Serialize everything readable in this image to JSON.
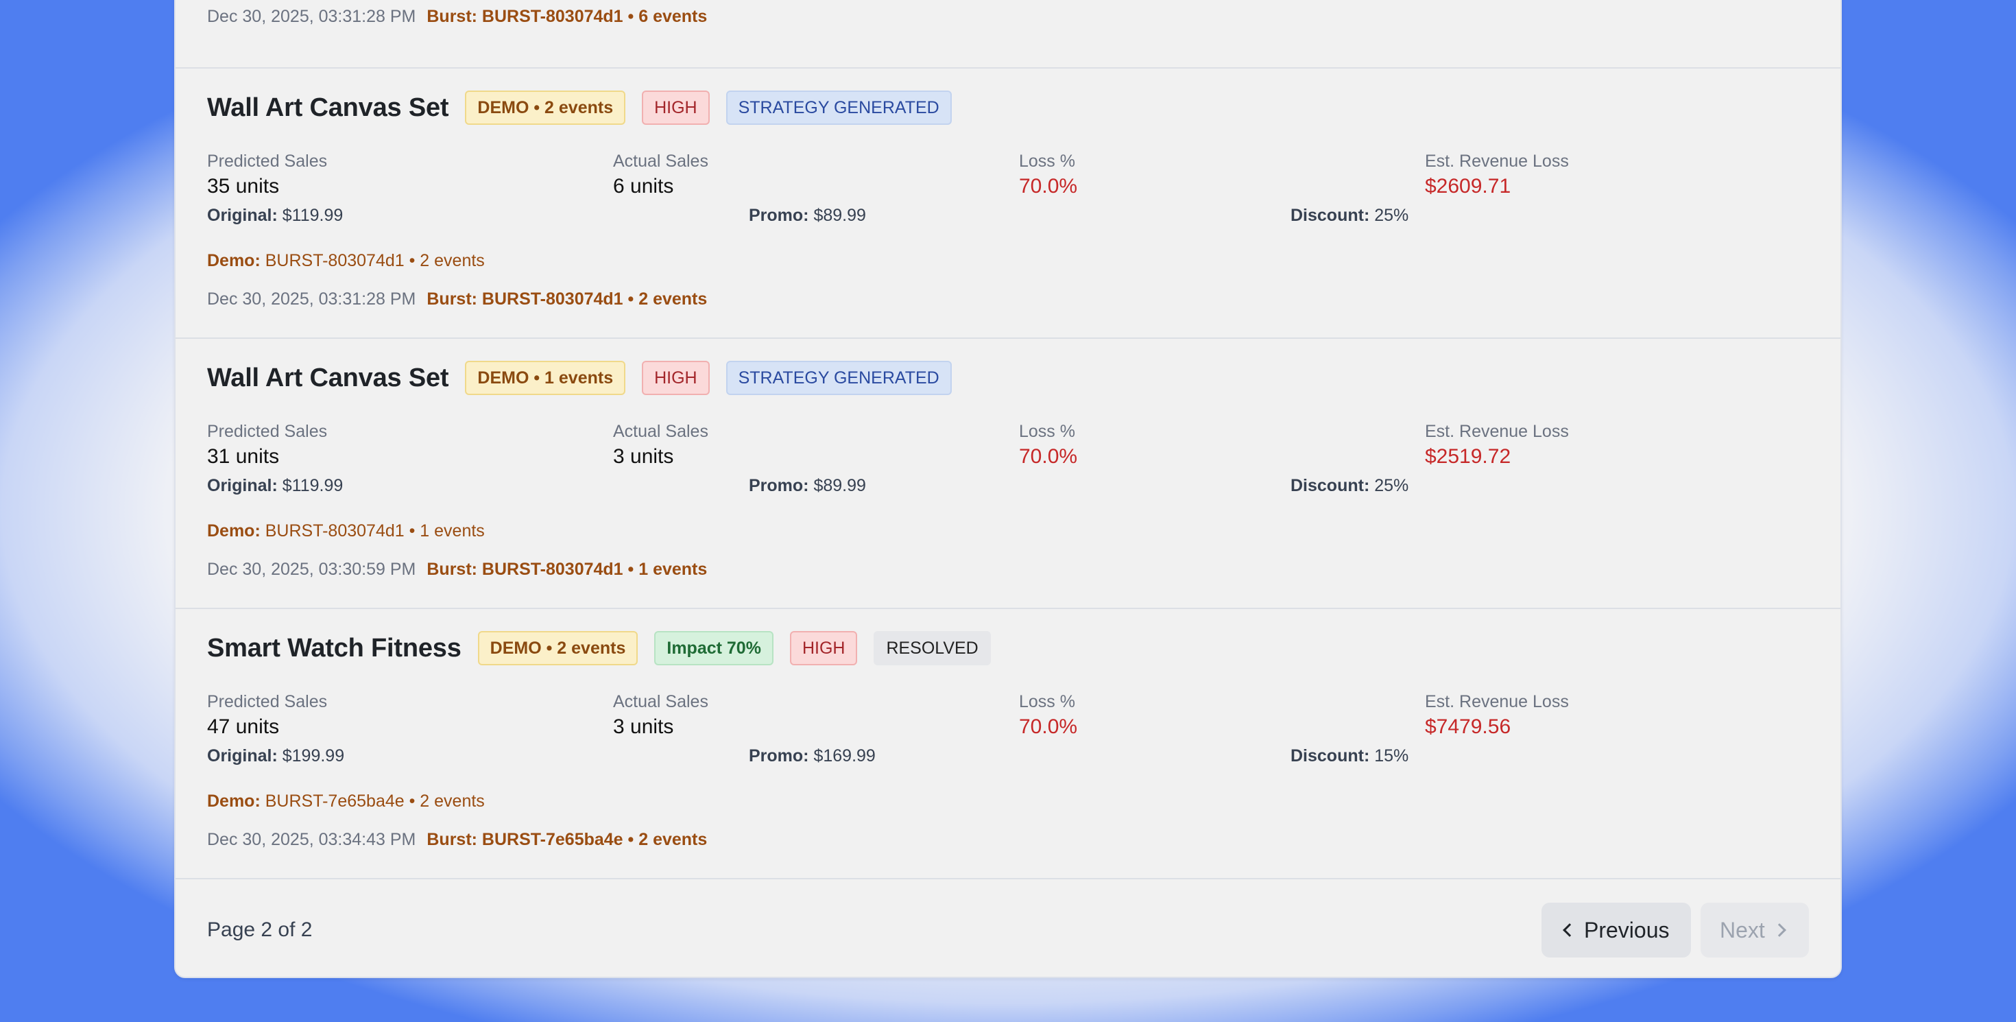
{
  "prev_tail": {
    "timestamp": "Dec 30, 2025, 03:31:28 PM",
    "burst": "Burst: BURST-803074d1 • 6 events"
  },
  "labels": {
    "predicted": "Predicted Sales",
    "actual": "Actual Sales",
    "loss_pct": "Loss %",
    "rev_loss": "Est. Revenue Loss",
    "original": "Original:",
    "promo": "Promo:",
    "discount": "Discount:",
    "demo": "Demo:"
  },
  "cards": [
    {
      "title": "Wall Art Canvas Set",
      "badges": {
        "demo": "DEMO • 2 events",
        "high": "HIGH",
        "strategy": "STRATEGY GENERATED"
      },
      "predicted": "35 units",
      "actual": "6 units",
      "loss_pct": "70.0%",
      "rev_loss": "$2609.71",
      "original": "$119.99",
      "promo": "$89.99",
      "discount": "25%",
      "demo_value": "BURST-803074d1 • 2 events",
      "timestamp": "Dec 30, 2025, 03:31:28 PM",
      "burst": "Burst: BURST-803074d1 • 2 events"
    },
    {
      "title": "Wall Art Canvas Set",
      "badges": {
        "demo": "DEMO • 1 events",
        "high": "HIGH",
        "strategy": "STRATEGY GENERATED"
      },
      "predicted": "31 units",
      "actual": "3 units",
      "loss_pct": "70.0%",
      "rev_loss": "$2519.72",
      "original": "$119.99",
      "promo": "$89.99",
      "discount": "25%",
      "demo_value": "BURST-803074d1 • 1 events",
      "timestamp": "Dec 30, 2025, 03:30:59 PM",
      "burst": "Burst: BURST-803074d1 • 1 events"
    },
    {
      "title": "Smart Watch Fitness",
      "badges": {
        "demo": "DEMO • 2 events",
        "impact": "Impact 70%",
        "high": "HIGH",
        "resolved": "RESOLVED"
      },
      "predicted": "47 units",
      "actual": "3 units",
      "loss_pct": "70.0%",
      "rev_loss": "$7479.56",
      "original": "$199.99",
      "promo": "$169.99",
      "discount": "15%",
      "demo_value": "BURST-7e65ba4e • 2 events",
      "timestamp": "Dec 30, 2025, 03:34:43 PM",
      "burst": "Burst: BURST-7e65ba4e • 2 events"
    }
  ],
  "pagination": {
    "page_info": "Page 2 of 2",
    "previous": "Previous",
    "next": "Next"
  },
  "colors": {
    "loss_red": "#c62828",
    "burst_orange": "#9a4d12",
    "backdrop_blue": "#4f7ef0"
  }
}
